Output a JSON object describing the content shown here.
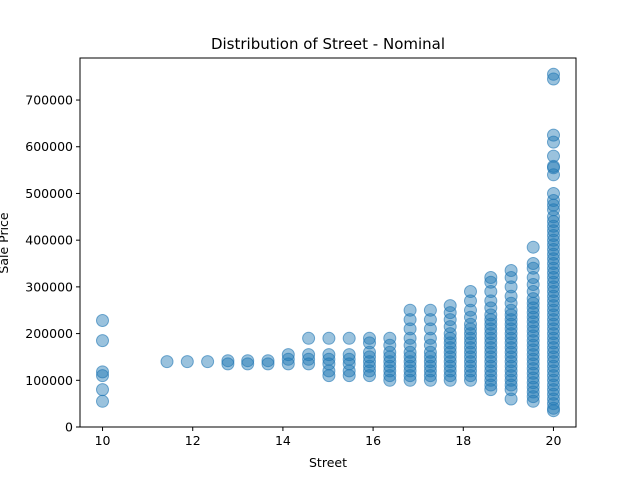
{
  "chart_data": {
    "type": "scatter",
    "title": "Distribution of Street - Nominal",
    "xlabel": "Street",
    "ylabel": "Sale Price",
    "xlim": [
      9.5,
      20.5
    ],
    "ylim": [
      0,
      790000
    ],
    "xticks": [
      10,
      12,
      14,
      16,
      18,
      20
    ],
    "yticks": [
      0,
      100000,
      200000,
      300000,
      400000,
      500000,
      600000,
      700000
    ],
    "grid": false,
    "point_color": "#1f77b4",
    "point_opacity": 0.45,
    "columns": [
      {
        "x": 10.0,
        "y": [
          55000,
          80000,
          110000,
          118000,
          185000,
          228000
        ]
      },
      {
        "x": 11.43,
        "y": [
          140000
        ]
      },
      {
        "x": 11.88,
        "y": [
          140000
        ]
      },
      {
        "x": 12.33,
        "y": [
          140000
        ]
      },
      {
        "x": 12.78,
        "y": [
          135000,
          142000
        ]
      },
      {
        "x": 13.22,
        "y": [
          135000,
          142000
        ]
      },
      {
        "x": 13.67,
        "y": [
          135000,
          142000
        ]
      },
      {
        "x": 14.12,
        "y": [
          135000,
          145000,
          155000
        ]
      },
      {
        "x": 14.57,
        "y": [
          135000,
          145000,
          155000,
          190000
        ]
      },
      {
        "x": 15.02,
        "y": [
          110000,
          120000,
          135000,
          145000,
          155000,
          190000
        ]
      },
      {
        "x": 15.47,
        "y": [
          110000,
          120000,
          135000,
          145000,
          155000,
          190000
        ]
      },
      {
        "x": 15.92,
        "y": [
          110000,
          120000,
          130000,
          140000,
          150000,
          160000,
          180000,
          190000
        ]
      },
      {
        "x": 16.37,
        "y": [
          100000,
          110000,
          120000,
          130000,
          140000,
          150000,
          160000,
          175000,
          190000
        ]
      },
      {
        "x": 16.82,
        "y": [
          100000,
          110000,
          120000,
          130000,
          140000,
          150000,
          160000,
          175000,
          190000,
          210000,
          230000,
          250000
        ]
      },
      {
        "x": 17.27,
        "y": [
          100000,
          110000,
          120000,
          130000,
          140000,
          150000,
          160000,
          175000,
          190000,
          210000,
          230000,
          250000
        ]
      },
      {
        "x": 17.71,
        "y": [
          100000,
          110000,
          120000,
          130000,
          140000,
          150000,
          160000,
          170000,
          180000,
          190000,
          200000,
          215000,
          230000,
          245000,
          260000
        ]
      },
      {
        "x": 18.16,
        "y": [
          100000,
          110000,
          120000,
          130000,
          140000,
          150000,
          160000,
          170000,
          180000,
          190000,
          200000,
          210000,
          220000,
          235000,
          250000,
          270000,
          290000
        ]
      },
      {
        "x": 18.61,
        "y": [
          80000,
          90000,
          100000,
          110000,
          120000,
          130000,
          140000,
          150000,
          160000,
          170000,
          180000,
          190000,
          200000,
          210000,
          220000,
          230000,
          240000,
          255000,
          270000,
          290000,
          310000,
          320000
        ]
      },
      {
        "x": 19.06,
        "y": [
          60000,
          80000,
          90000,
          100000,
          110000,
          120000,
          130000,
          140000,
          150000,
          160000,
          170000,
          180000,
          190000,
          200000,
          210000,
          220000,
          230000,
          240000,
          250000,
          265000,
          280000,
          300000,
          320000,
          335000
        ]
      },
      {
        "x": 19.55,
        "y": [
          55000,
          65000,
          75000,
          85000,
          95000,
          105000,
          115000,
          125000,
          135000,
          145000,
          155000,
          165000,
          175000,
          185000,
          195000,
          205000,
          215000,
          225000,
          235000,
          245000,
          255000,
          265000,
          275000,
          290000,
          305000,
          320000,
          340000,
          350000,
          385000
        ]
      },
      {
        "x": 20.0,
        "y": [
          35000,
          40000,
          50000,
          60000,
          70000,
          80000,
          90000,
          100000,
          110000,
          120000,
          130000,
          140000,
          150000,
          160000,
          170000,
          180000,
          190000,
          200000,
          210000,
          220000,
          230000,
          240000,
          250000,
          260000,
          270000,
          280000,
          290000,
          300000,
          310000,
          320000,
          330000,
          340000,
          350000,
          360000,
          370000,
          380000,
          390000,
          400000,
          410000,
          420000,
          430000,
          440000,
          450000,
          465000,
          475000,
          485000,
          500000,
          540000,
          555000,
          558000,
          580000,
          610000,
          625000,
          745000,
          755000
        ]
      }
    ]
  }
}
